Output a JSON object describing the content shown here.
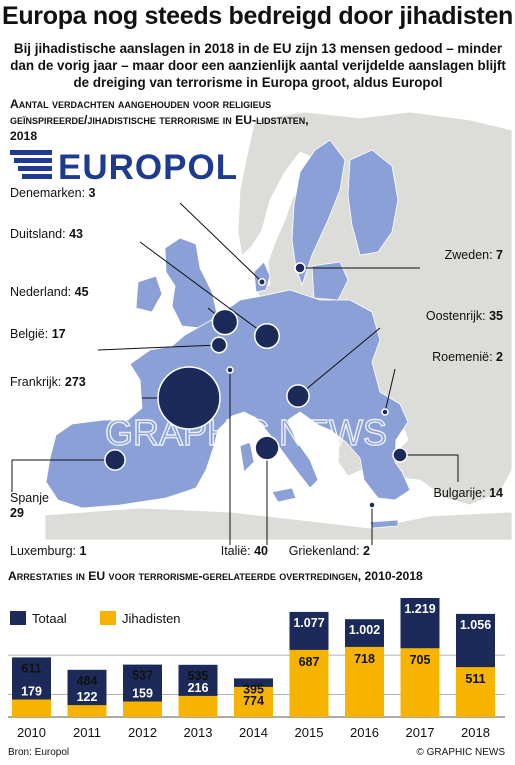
{
  "title": "Europa nog steeds bedreigd door jihadisten",
  "subtitle": "Bij jihadistische aanslagen in 2018 in de EU zijn 13 mensen gedood – minder dan de vorig jaar – maar door een aanzienlijk aantal verijdelde aanslagen blijft de dreiging van terrorisme in Europa groot, aldus Europol",
  "map_heading": "Aantal verdachten aangehouden voor religieus geïnspireerde/jihadistische terrorisme in EU-lidstaten, 2018",
  "logo_text": "EUROPOL",
  "watermark": "GRAPHIC NEWS",
  "bar_heading": "Arrestaties in EU voor terrorisme-gerelateerde overtredingen, 2010-2018",
  "legend": {
    "total": "Totaal",
    "jihadist": "Jihadisten"
  },
  "source": "Bron: Europol",
  "credit": "© GRAPHIC NEWS",
  "colors": {
    "navy": "#1b2a58",
    "yellow": "#f6b400",
    "eu_land": "#8aa0d6",
    "non_eu_land": "#dcdcd8",
    "sea": "#ffffff",
    "logo_blue": "#1f3b8f"
  },
  "chart_data": [
    {
      "type": "bubble",
      "title": "Aantal verdachten aangehouden voor religieus geïnspireerde/jihadistische terrorisme in EU-lidstaten, 2018",
      "points": [
        {
          "country": "Denemarken",
          "value": 3
        },
        {
          "country": "Duitsland",
          "value": 43
        },
        {
          "country": "Nederland",
          "value": 45
        },
        {
          "country": "België",
          "value": 17
        },
        {
          "country": "Frankrijk",
          "value": 273
        },
        {
          "country": "Spanje",
          "value": 29
        },
        {
          "country": "Luxemburg",
          "value": 1
        },
        {
          "country": "Italië",
          "value": 40
        },
        {
          "country": "Griekenland",
          "value": 2
        },
        {
          "country": "Bulgarije",
          "value": 14
        },
        {
          "country": "Roemenië",
          "value": 2
        },
        {
          "country": "Oostenrijk",
          "value": 35
        },
        {
          "country": "Zweden",
          "value": 7
        }
      ]
    },
    {
      "type": "bar",
      "title": "Arrestaties in EU voor terrorisme-gerelateerde overtredingen, 2010-2018",
      "categories": [
        "2010",
        "2011",
        "2012",
        "2013",
        "2014",
        "2015",
        "2016",
        "2017",
        "2018"
      ],
      "series": [
        {
          "name": "Totaal",
          "values": [
            611,
            484,
            537,
            535,
            395,
            1077,
            1002,
            1219,
            1056
          ],
          "labels": [
            "611",
            "484",
            "537",
            "535",
            "395",
            "1.077",
            "1.002",
            "1.219",
            "1.056"
          ]
        },
        {
          "name": "Jihadisten",
          "values": [
            179,
            122,
            159,
            216,
            774,
            687,
            718,
            705,
            511
          ],
          "labels": [
            "179",
            "122",
            "159",
            "216",
            "774",
            "687",
            "718",
            "705",
            "511"
          ]
        }
      ],
      "ylim": [
        0,
        1219
      ]
    }
  ]
}
